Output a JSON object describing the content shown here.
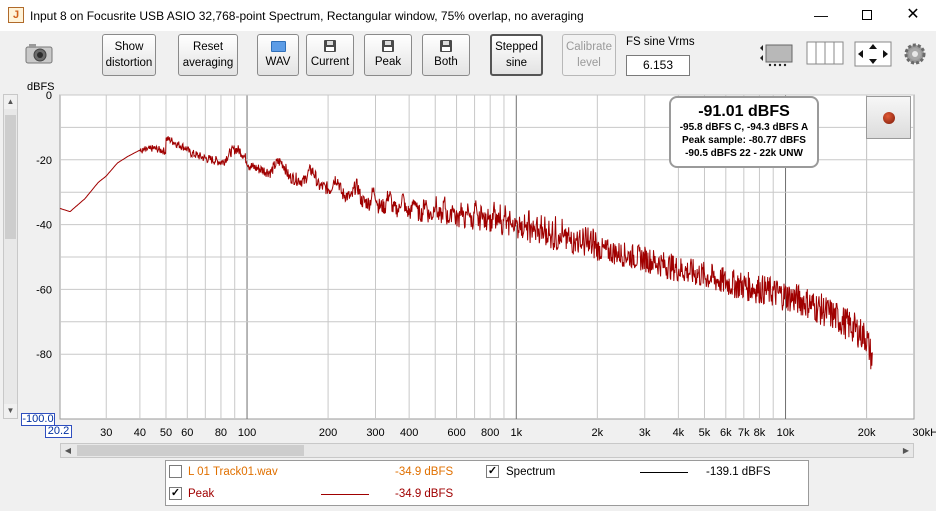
{
  "window": {
    "title": "Input 8 on Focusrite USB ASIO 32,768-point Spectrum, Rectangular window, 75% overlap, no averaging",
    "min_label": "—",
    "close_label": "✕"
  },
  "toolbar": {
    "show_distortion": [
      "Show",
      "distortion"
    ],
    "reset_averaging": [
      "Reset",
      "averaging"
    ],
    "wav": "WAV",
    "current": "Current",
    "peak": "Peak",
    "both": "Both",
    "stepped_sine": [
      "Stepped",
      "sine"
    ],
    "calibrate_level": [
      "Calibrate",
      "level"
    ],
    "fs_label": "FS sine Vrms",
    "fs_value": "6.153"
  },
  "plot": {
    "ylabel": "dBFS",
    "ymin_box": "-100.0",
    "xmin_box": "20.2",
    "background": "#ffffff",
    "grid_color": "#c8c8c8",
    "trace_color": "#a00000"
  },
  "annotation": {
    "main": "-91.01 dBFS",
    "line1": "-95.8 dBFS C, -94.3 dBFS A",
    "line2": "Peak sample: -80.77 dBFS",
    "line3": "-90.5 dBFS 22 - 22k UNW"
  },
  "legend": {
    "track_name": "L 01 Track01.wav",
    "track_value": "-34.9 dBFS",
    "track_color": "#e07000",
    "spectrum_name": "Spectrum",
    "spectrum_value": "-139.1 dBFS",
    "peak_name": "Peak",
    "peak_value": "-34.9 dBFS",
    "peak_color": "#a00000"
  },
  "chart_data": {
    "type": "line",
    "title": "",
    "xlabel": "",
    "ylabel": "dBFS",
    "x_scale": "log",
    "xlim": [
      20.2,
      30000
    ],
    "ylim": [
      -100,
      0
    ],
    "grid": true,
    "y_ticks": [
      "0",
      "-20",
      "-40",
      "-60",
      "-80"
    ],
    "x_ticks": [
      "30",
      "40",
      "50",
      "60",
      "80",
      "100",
      "200",
      "300",
      "400",
      "600",
      "800",
      "1k",
      "2k",
      "3k",
      "4k",
      "5k",
      "6k",
      "7k",
      "8k",
      "10k",
      "20k",
      "30kHz"
    ],
    "x_tick_values": [
      30,
      40,
      50,
      60,
      80,
      100,
      200,
      300,
      400,
      600,
      800,
      1000,
      2000,
      3000,
      4000,
      5000,
      6000,
      7000,
      8000,
      10000,
      20000,
      30000
    ],
    "series": [
      {
        "name": "Peak",
        "color": "#a00000",
        "x": [
          20.2,
          22,
          25,
          28,
          30,
          33,
          36,
          40,
          45,
          50,
          55,
          60,
          70,
          80,
          90,
          100,
          120,
          150,
          200,
          250,
          300,
          400,
          500,
          600,
          800,
          1000,
          1500,
          2000,
          3000,
          4000,
          5000,
          6000,
          8000,
          10000,
          12000,
          15000,
          18000,
          20000,
          21000
        ],
        "y": [
          -35,
          -36,
          -32,
          -27,
          -25,
          -21,
          -19,
          -17,
          -16,
          -17,
          -18,
          -17,
          -19,
          -20,
          -20,
          -21,
          -23,
          -25,
          -28,
          -31,
          -33,
          -35,
          -36,
          -37,
          -38,
          -40,
          -44,
          -46,
          -49,
          -52,
          -54,
          -56,
          -58,
          -60,
          -62,
          -66,
          -70,
          -73,
          -80
        ]
      }
    ]
  }
}
